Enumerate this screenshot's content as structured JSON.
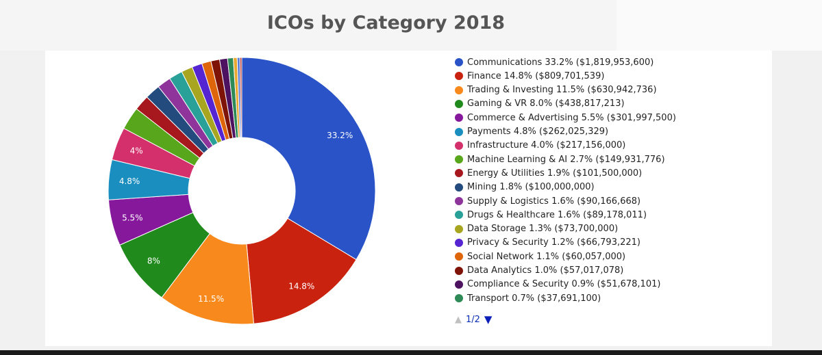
{
  "chart_data": {
    "type": "pie",
    "title": "ICOs by Category 2018",
    "hole": true,
    "legend_position": "right",
    "slices": [
      {
        "label": "Communications",
        "percent_label": "33.2%",
        "value_label": "$1,819,953,600",
        "value": 1819953600,
        "color": "#2953c6",
        "data_label": "33.2%"
      },
      {
        "label": "Finance",
        "percent_label": "14.8%",
        "value_label": "$809,701,539",
        "value": 809701539,
        "color": "#c9220f",
        "data_label": "14.8%"
      },
      {
        "label": "Trading & Investing",
        "percent_label": "11.5%",
        "value_label": "$630,942,736",
        "value": 630942736,
        "color": "#f7891d",
        "data_label": "11.5%"
      },
      {
        "label": "Gaming & VR",
        "percent_label": "8.0%",
        "value_label": "$438,817,213",
        "value": 438817213,
        "color": "#208a1c",
        "data_label": "8%"
      },
      {
        "label": "Commerce & Advertising",
        "percent_label": "5.5%",
        "value_label": "$301,997,500",
        "value": 301997500,
        "color": "#86189b",
        "data_label": "5.5%"
      },
      {
        "label": "Payments",
        "percent_label": "4.8%",
        "value_label": "$262,025,329",
        "value": 262025329,
        "color": "#1a8ebf",
        "data_label": "4.8%"
      },
      {
        "label": "Infrastructure",
        "percent_label": "4.0%",
        "value_label": "$217,156,000",
        "value": 217156000,
        "color": "#d3306c",
        "data_label": "4%"
      },
      {
        "label": "Machine Learning & AI",
        "percent_label": "2.7%",
        "value_label": "$149,931,776",
        "value": 149931776,
        "color": "#57a61b",
        "data_label": ""
      },
      {
        "label": "Energy & Utilities",
        "percent_label": "1.9%",
        "value_label": "$101,500,000",
        "value": 101500000,
        "color": "#a7181e",
        "data_label": ""
      },
      {
        "label": "Mining",
        "percent_label": "1.8%",
        "value_label": "$100,000,000",
        "value": 100000000,
        "color": "#244b7e",
        "data_label": ""
      },
      {
        "label": "Supply & Logistics",
        "percent_label": "1.6%",
        "value_label": "$90,166,668",
        "value": 90166668,
        "color": "#8e349b",
        "data_label": ""
      },
      {
        "label": "Drugs & Healthcare",
        "percent_label": "1.6%",
        "value_label": "$89,178,011",
        "value": 89178011,
        "color": "#29a098",
        "data_label": ""
      },
      {
        "label": "Data Storage",
        "percent_label": "1.3%",
        "value_label": "$73,700,000",
        "value": 73700000,
        "color": "#a8a521",
        "data_label": ""
      },
      {
        "label": "Privacy & Security",
        "percent_label": "1.2%",
        "value_label": "$66,793,221",
        "value": 66793221,
        "color": "#5525d1",
        "data_label": ""
      },
      {
        "label": "Social Network",
        "percent_label": "1.1%",
        "value_label": "$60,057,000",
        "value": 60057000,
        "color": "#df650b",
        "data_label": ""
      },
      {
        "label": "Data Analytics",
        "percent_label": "1.0%",
        "value_label": "$57,017,078",
        "value": 57017078,
        "color": "#7e1308",
        "data_label": ""
      },
      {
        "label": "Compliance & Security",
        "percent_label": "0.9%",
        "value_label": "$51,678,101",
        "value": 51678101,
        "color": "#4d1360",
        "data_label": ""
      },
      {
        "label": "Transport",
        "percent_label": "0.7%",
        "value_label": "$37,691,100",
        "value": 37691100,
        "color": "#2e8a57",
        "data_label": ""
      },
      {
        "label": "",
        "percent_label": "",
        "value_label": "",
        "value": 25000000,
        "color": "#e8a830",
        "data_label": ""
      },
      {
        "label": "",
        "percent_label": "",
        "value_label": "",
        "value": 18000000,
        "color": "#5b7bd5",
        "data_label": ""
      },
      {
        "label": "",
        "percent_label": "",
        "value_label": "",
        "value": 12000000,
        "color": "#b73a3a",
        "data_label": ""
      }
    ]
  },
  "legend": {
    "page_label": "1/2",
    "prev_icon": "triangle-up-icon",
    "next_icon": "triangle-down-icon"
  }
}
